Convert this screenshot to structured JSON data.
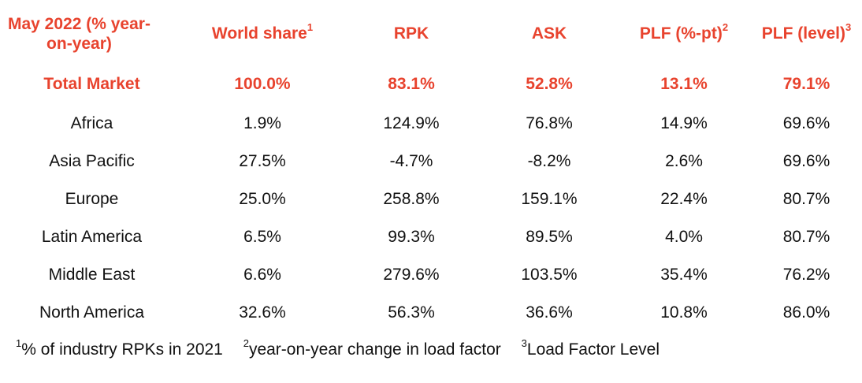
{
  "header": {
    "label": "May 2022 (% year-on-year)",
    "label_line1": "May 2022 (% year-",
    "label_line2": "on-year)",
    "columns": [
      {
        "text": "World share",
        "sup": "1"
      },
      {
        "text": "RPK",
        "sup": ""
      },
      {
        "text": "ASK",
        "sup": ""
      },
      {
        "text": "PLF (%-pt)",
        "sup": "2"
      },
      {
        "text": "PLF (level)",
        "sup": "3"
      }
    ]
  },
  "total": [
    "Total Market",
    "100.0%",
    "83.1%",
    "52.8%",
    "13.1%",
    "79.1%"
  ],
  "rows": [
    [
      "Africa",
      "1.9%",
      "124.9%",
      "76.8%",
      "14.9%",
      "69.6%"
    ],
    [
      "Asia Pacific",
      "27.5%",
      "-4.7%",
      "-8.2%",
      "2.6%",
      "69.6%"
    ],
    [
      "Europe",
      "25.0%",
      "258.8%",
      "159.1%",
      "22.4%",
      "80.7%"
    ],
    [
      "Latin America",
      "6.5%",
      "99.3%",
      "89.5%",
      "4.0%",
      "80.7%"
    ],
    [
      "Middle East",
      "6.6%",
      "279.6%",
      "103.5%",
      "35.4%",
      "76.2%"
    ],
    [
      "North America",
      "32.6%",
      "56.3%",
      "36.6%",
      "10.8%",
      "86.0%"
    ]
  ],
  "footnotes": [
    {
      "sup": "1",
      "text": "% of industry RPKs in 2021"
    },
    {
      "sup": "2",
      "text": "year-on-year change in load factor"
    },
    {
      "sup": "3",
      "text": "Load Factor Level"
    }
  ],
  "colors": {
    "accent": "#e8432e",
    "text": "#111111"
  }
}
